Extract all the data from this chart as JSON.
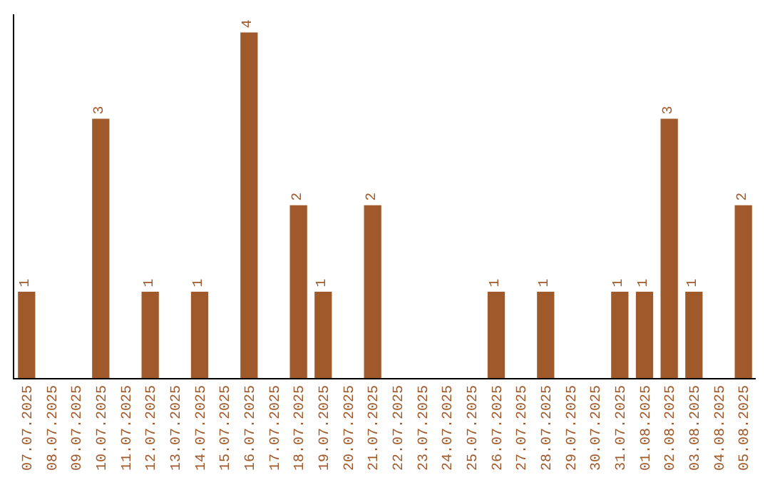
{
  "chart_data": {
    "type": "bar",
    "categories": [
      "07.07.2025",
      "08.07.2025",
      "09.07.2025",
      "10.07.2025",
      "11.07.2025",
      "12.07.2025",
      "13.07.2025",
      "14.07.2025",
      "15.07.2025",
      "16.07.2025",
      "17.07.2025",
      "18.07.2025",
      "19.07.2025",
      "20.07.2025",
      "21.07.2025",
      "22.07.2025",
      "23.07.2025",
      "24.07.2025",
      "25.07.2025",
      "26.07.2025",
      "27.07.2025",
      "28.07.2025",
      "29.07.2025",
      "30.07.2025",
      "31.07.2025",
      "01.08.2025",
      "02.08.2025",
      "03.08.2025",
      "04.08.2025",
      "05.08.2025"
    ],
    "values": [
      1,
      0,
      0,
      3,
      0,
      1,
      0,
      1,
      0,
      4,
      0,
      2,
      1,
      0,
      2,
      0,
      0,
      0,
      0,
      1,
      0,
      1,
      0,
      0,
      1,
      1,
      3,
      1,
      0,
      2
    ],
    "value_labels": [
      "1",
      null,
      null,
      "3",
      null,
      "1",
      null,
      "1",
      null,
      "4",
      null,
      "2",
      "1",
      null,
      "2",
      null,
      null,
      null,
      null,
      "1",
      null,
      "1",
      null,
      null,
      "1",
      "1",
      "3",
      "1",
      null,
      "2"
    ],
    "color": "#a0592a",
    "tick_labels": "x"
  }
}
